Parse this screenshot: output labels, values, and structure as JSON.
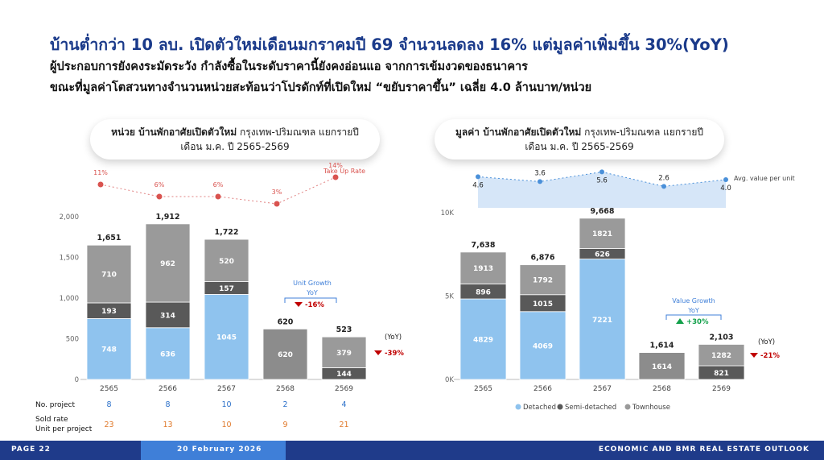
{
  "header": {
    "headline": "บ้านต่ำกว่า 10 ลบ. เปิดตัวใหม่เดือนมกราคมปี 69 จำนวนลดลง 16% แต่มูลค่าเพิ่มขึ้น 30%(YoY)",
    "sub1": "ผู้ประกอบการยังคงระมัดระวัง กำลังซื้อในระดับราคานี้ยังคงอ่อนแอ จากการเข้มงวดของธนาคาร",
    "sub2": "ขณะที่มูลค่าโตสวนทางจำนวนหน่วยสะท้อนว่าโปรดักท์ที่เปิดใหม่ “ขยับราคาขึ้น” เฉลี่ย 4.0 ล้านบาท/หน่วย"
  },
  "left_panel": {
    "title_bold": "หน่วย บ้านพักอาศัยเปิดตัวใหม่",
    "title_rest": " กรุงเทพ-ปริมณฑล แยกรายปี",
    "title_line2": "เดือน ม.ค. ปี 2565-2569"
  },
  "right_panel": {
    "title_bold": "มูลค่า บ้านพักอาศัยเปิดตัวใหม่",
    "title_rest": " กรุงเทพ-ปริมณฑล แยกรายปี",
    "title_line2": "เดือน ม.ค. ปี 2565-2569"
  },
  "colors": {
    "detached": "#8fc3ee",
    "semi": "#595959",
    "townhouse": "#9a9a9a",
    "grey_bar": "#8c8c8c",
    "red": "#c00000",
    "green": "#12a04a",
    "navy": "#1f3b8a",
    "accent_blue": "#3f7fd8"
  },
  "chart_data": [
    {
      "type": "bar",
      "stacked": true,
      "categories": [
        "2565",
        "2566",
        "2567",
        "2568",
        "2569"
      ],
      "series": [
        {
          "name": "Detached",
          "values": [
            748,
            636,
            1045,
            null,
            null
          ]
        },
        {
          "name": "Semi-detached",
          "values": [
            193,
            314,
            157,
            null,
            144
          ]
        },
        {
          "name": "Townhouse",
          "values": [
            710,
            962,
            520,
            null,
            379
          ]
        },
        {
          "values": [
            null,
            null,
            null,
            620,
            null
          ]
        }
      ],
      "segment_labels": [
        [
          "748",
          "193",
          "710"
        ],
        [
          "636",
          "314",
          "962"
        ],
        [
          "1045",
          "157",
          "520"
        ],
        [
          "620"
        ],
        [
          "144",
          "379"
        ]
      ],
      "totals": [
        1651,
        1912,
        1722,
        620,
        523
      ],
      "total_labels": [
        "1,651",
        "1,912",
        "1,722",
        "620",
        "523"
      ],
      "ylim": [
        0,
        2000
      ],
      "yticks": [
        "0",
        "500",
        "1,000",
        "1,500",
        "2,000"
      ],
      "take_up_rate": {
        "name": "Take Up Rate",
        "values": [
          11,
          6,
          6,
          3,
          14
        ],
        "labels": [
          "11%",
          "6%",
          "6%",
          "3%",
          "14%"
        ]
      },
      "growth_box": {
        "title": "Unit Growth",
        "sub": "YoY",
        "value": "-16%"
      },
      "yoy_note": {
        "label": "(YoY)",
        "value": "-39%"
      },
      "table": {
        "row1_label": "No. project",
        "row1_values": [
          "8",
          "8",
          "10",
          "2",
          "4"
        ],
        "row2_label": "Sold rate",
        "row3_label": "Unit per project",
        "row3_values": [
          "23",
          "13",
          "10",
          "9",
          "21"
        ]
      }
    },
    {
      "type": "bar",
      "stacked": true,
      "categories": [
        "2565",
        "2566",
        "2567",
        "2568",
        "2569"
      ],
      "series": [
        {
          "name": "Detached",
          "values": [
            4829,
            4069,
            7221,
            null,
            null
          ]
        },
        {
          "name": "Semi-detached",
          "values": [
            896,
            1015,
            626,
            null,
            821
          ]
        },
        {
          "name": "Townhouse",
          "values": [
            1913,
            1792,
            1821,
            null,
            1282
          ]
        },
        {
          "values": [
            null,
            null,
            null,
            1614,
            null
          ]
        }
      ],
      "segment_labels": [
        [
          "4829",
          "896",
          "1913"
        ],
        [
          "4069",
          "1015",
          "1792"
        ],
        [
          "7221",
          "626",
          "1821"
        ],
        [
          "1614"
        ],
        [
          "821",
          "1282"
        ]
      ],
      "totals": [
        7638,
        6876,
        9668,
        1614,
        2103
      ],
      "total_labels": [
        "7,638",
        "6,876",
        "9,668",
        "1,614",
        "2,103"
      ],
      "ylim": [
        0,
        10000
      ],
      "yticks": [
        "0K",
        "5K",
        "10K"
      ],
      "avg_value_per_unit": {
        "name": "Avg. value per unit",
        "values": [
          4.6,
          3.6,
          5.6,
          2.6,
          4.0
        ],
        "labels": [
          "4.6",
          "3.6",
          "5.6",
          "2.6",
          "4.0"
        ]
      },
      "growth_box": {
        "title": "Value Growth",
        "sub": "YoY",
        "value": "+30%"
      },
      "yoy_note": {
        "label": "(YoY)",
        "value": "-21%"
      },
      "legend": [
        "Detached",
        "Semi-detached",
        "Townhouse"
      ],
      "legend_position": "bottom"
    }
  ],
  "footer": {
    "page": "PAGE 22",
    "date": "20 February 2026",
    "report": "ECONOMIC AND BMR REAL ESTATE OUTLOOK"
  }
}
